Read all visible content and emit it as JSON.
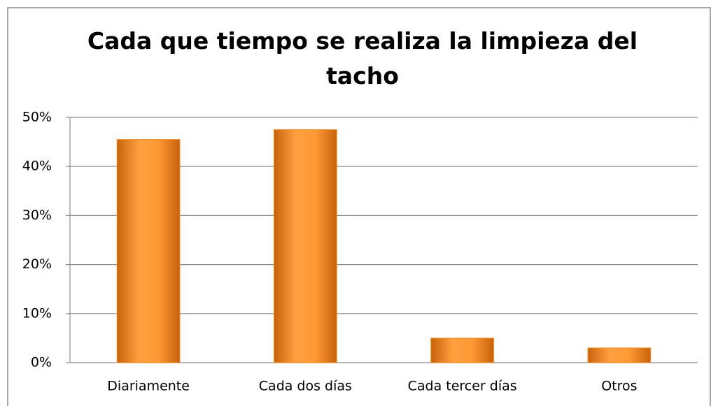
{
  "chart_data": {
    "type": "bar",
    "title": "Cada que tiempo se realiza la limpieza del tacho",
    "categories": [
      "Diariamente",
      "Cada dos días",
      "Cada tercer días",
      "Otros"
    ],
    "values": [
      45.5,
      47.5,
      5,
      3
    ],
    "color": "#f28a1e",
    "ylim": [
      0,
      50
    ],
    "yticks": [
      {
        "value": 0,
        "label": "0%"
      },
      {
        "value": 10,
        "label": "10%"
      },
      {
        "value": 20,
        "label": "20%"
      },
      {
        "value": 30,
        "label": "30%"
      },
      {
        "value": 40,
        "label": "40%"
      },
      {
        "value": 50,
        "label": "50%"
      }
    ],
    "grid": true
  }
}
